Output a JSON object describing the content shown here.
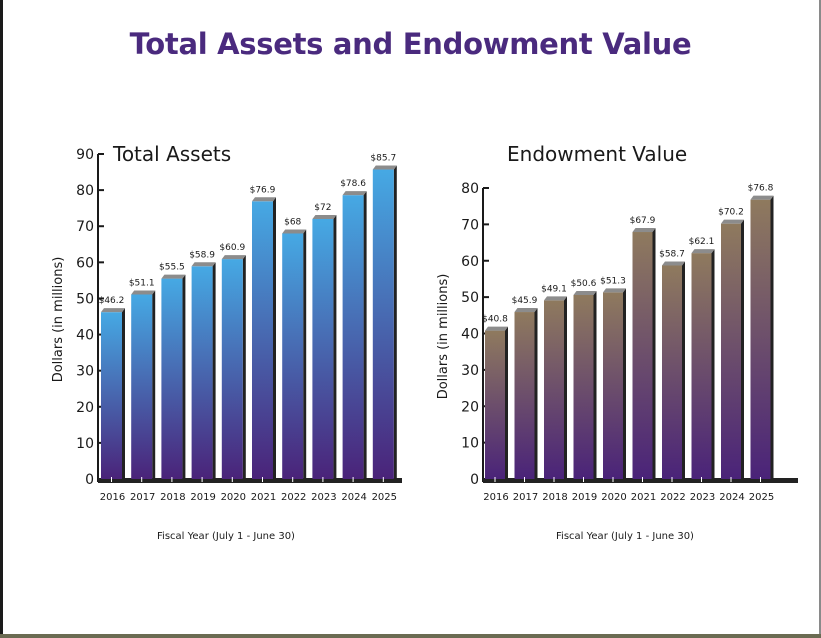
{
  "page_title": "Total Assets and Endowment Value",
  "colors": {
    "title": "#4a2a7e",
    "axis": "#1a1a1a",
    "assets_top": "#46a9e4",
    "assets_bottom": "#4a2379",
    "endow_top": "#8f7a5e",
    "endow_bottom": "#4a2379",
    "bar_cap": "#8c8c8c",
    "bar_side": "#222222"
  },
  "chart_data": [
    {
      "type": "bar",
      "title": "Total Assets",
      "ylabel": "Dollars (in millions)",
      "xlabel": "Fiscal Year (July 1 - June 30)",
      "ylim": [
        0,
        90
      ],
      "yticks": [
        0,
        10,
        20,
        30,
        40,
        50,
        60,
        70,
        80,
        90
      ],
      "categories": [
        "2016",
        "2017",
        "2018",
        "2019",
        "2020",
        "2021",
        "2022",
        "2023",
        "2024",
        "2025"
      ],
      "values": [
        46.2,
        51.1,
        55.5,
        58.9,
        60.9,
        76.9,
        68,
        72,
        78.6,
        85.7
      ],
      "data_labels": [
        "$46.2",
        "$51.1",
        "$55.5",
        "$58.9",
        "$60.9",
        "$76.9",
        "$68",
        "$72",
        "$78.6",
        "$85.7"
      ],
      "grid": false,
      "legend": "none"
    },
    {
      "type": "bar",
      "title": "Endowment Value",
      "ylabel": "Dollars (in millions)",
      "xlabel": "Fiscal Year (July 1 - June 30)",
      "ylim": [
        0,
        80
      ],
      "yticks": [
        0,
        10,
        20,
        30,
        40,
        50,
        60,
        70,
        80
      ],
      "categories": [
        "2016",
        "2017",
        "2018",
        "2019",
        "2020",
        "2021",
        "2022",
        "2023",
        "2024",
        "2025"
      ],
      "values": [
        40.8,
        45.9,
        49.1,
        50.6,
        51.3,
        67.9,
        58.7,
        62.1,
        70.2,
        76.8
      ],
      "data_labels": [
        "$40.8",
        "$45.9",
        "$49.1",
        "$50.6",
        "$51.3",
        "$67.9",
        "$58.7",
        "$62.1",
        "$70.2",
        "$76.8"
      ],
      "grid": false,
      "legend": "none"
    }
  ]
}
